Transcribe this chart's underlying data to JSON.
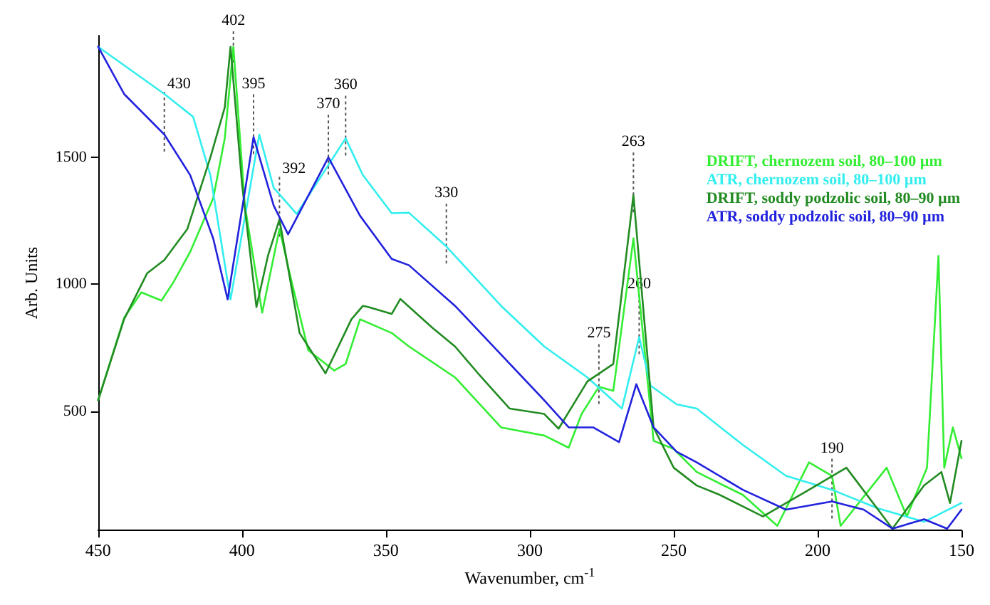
{
  "chart_data": {
    "type": "line",
    "xlabel": "Wavenumber, cm$^{-1}$",
    "ylabel": "Arb. Units",
    "xlim": [
      450,
      150
    ],
    "xticks": [
      450,
      400,
      350,
      300,
      250,
      200,
      150
    ],
    "ylim": [
      30,
      1980
    ],
    "yticks": [
      500,
      1000,
      1500
    ],
    "legend": "top right",
    "grid": false,
    "marker": "none",
    "line_style": "solid",
    "series": [
      {
        "name": "DRIFT, chernozem soil, 80–100 µm",
        "color": "#33ee33",
        "x": [
          450,
          441,
          435,
          428,
          424,
          418,
          410,
          406,
          403,
          399,
          393,
          387,
          383,
          377,
          368,
          364,
          359,
          348,
          342,
          326,
          310,
          295,
          286.5,
          282,
          276,
          271,
          264,
          257,
          250,
          242,
          226,
          214,
          203,
          195,
          192,
          176,
          169,
          162,
          158,
          156,
          153,
          150
        ],
        "values": [
          543,
          867,
          968,
          936,
          1005,
          1128,
          1340,
          1575,
          1936,
          1308,
          888,
          1218,
          1021,
          740,
          660,
          686,
          862,
          808,
          755,
          633,
          436,
          404,
          356,
          489,
          596,
          580,
          1181,
          383,
          351,
          260,
          170,
          48,
          298,
          245,
          48,
          277,
          85,
          277,
          1112,
          277,
          436,
          314
        ]
      },
      {
        "name": "ATR, chernozem soil, 80–100 µm",
        "color": "#33eeee",
        "x": [
          450,
          427,
          417,
          411,
          404,
          394,
          389,
          381,
          364,
          358,
          348,
          342,
          329,
          310,
          295,
          280,
          268,
          262,
          258,
          249,
          242,
          226,
          211,
          195,
          179,
          163,
          150
        ],
        "values": [
          1936,
          1750,
          1660,
          1430,
          940,
          1590,
          1380,
          1277,
          1575,
          1430,
          1280,
          1282,
          1149,
          915,
          755,
          633,
          510,
          792,
          600,
          527,
          510,
          367,
          245,
          190,
          117,
          64,
          138
        ]
      },
      {
        "name": "DRIFT, soddy podzolic soil, 80–90 µm",
        "color": "#228b22",
        "x": [
          450,
          441,
          433,
          427,
          419,
          411,
          406,
          404,
          400,
          395,
          391,
          387,
          380,
          371,
          362,
          358,
          356,
          348,
          345,
          334,
          326,
          318,
          307,
          295,
          290,
          280,
          271,
          264,
          257,
          250,
          242,
          234,
          219,
          203,
          190,
          174,
          163,
          157,
          154,
          150
        ],
        "values": [
          543,
          862,
          1043,
          1096,
          1218,
          1500,
          1697,
          1936,
          1394,
          910,
          1112,
          1255,
          808,
          649,
          862,
          915,
          910,
          883,
          942,
          830,
          755,
          649,
          510,
          489,
          431,
          617,
          686,
          1351,
          436,
          277,
          207,
          170,
          85,
          190,
          277,
          37,
          207,
          260,
          138,
          383
        ]
      },
      {
        "name": "ATR, soddy podzolic soil, 80–90 µm",
        "color": "#2222dd",
        "x": [
          450,
          441,
          427,
          418,
          410,
          405,
          396,
          389,
          384,
          370,
          359,
          348,
          342,
          326,
          310,
          295,
          286.5,
          278,
          269,
          263,
          257,
          249,
          242,
          226,
          211,
          195,
          184,
          174,
          163,
          155,
          150
        ],
        "values": [
          1936,
          1750,
          1590,
          1430,
          1180,
          940,
          1580,
          1310,
          1197,
          1500,
          1270,
          1100,
          1075,
          915,
          723,
          543,
          436,
          436,
          378,
          606,
          436,
          340,
          298,
          190,
          112,
          144,
          112,
          37,
          74,
          37,
          112
        ]
      }
    ],
    "annotations": [
      {
        "text": "430",
        "x": 427,
        "y": 1590
      },
      {
        "text": "402",
        "x": 403,
        "y": 1936
      },
      {
        "text": "395",
        "x": 396,
        "y": 1580
      },
      {
        "text": "392",
        "x": 387,
        "y": 1255
      },
      {
        "text": "370",
        "x": 370,
        "y": 1500
      },
      {
        "text": "360",
        "x": 364,
        "y": 1575
      },
      {
        "text": "330",
        "x": 329,
        "y": 1149
      },
      {
        "text": "263",
        "x": 264,
        "y": 1351
      },
      {
        "text": "275",
        "x": 276,
        "y": 596
      },
      {
        "text": "260",
        "x": 262,
        "y": 792
      },
      {
        "text": "190",
        "x": 195,
        "y": 144
      }
    ]
  }
}
